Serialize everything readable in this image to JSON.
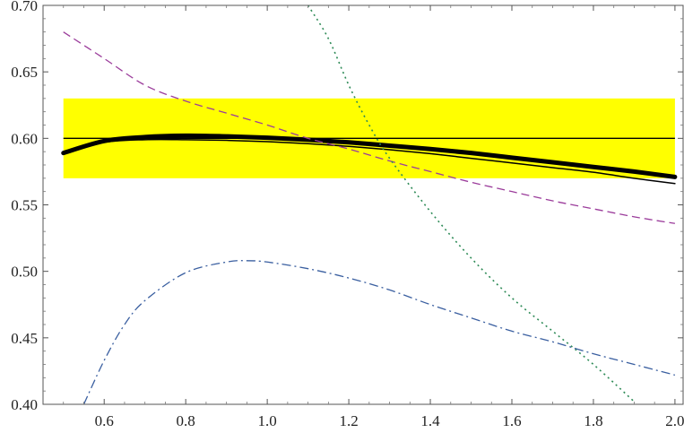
{
  "chart_data": {
    "type": "line",
    "title": "",
    "xlabel": "",
    "ylabel": "",
    "xlim": [
      0.45,
      2.02
    ],
    "ylim": [
      0.4,
      0.7
    ],
    "x_ticks": [
      0.6,
      0.8,
      1.0,
      1.2,
      1.4,
      1.6,
      1.8,
      2.0
    ],
    "y_ticks": [
      0.4,
      0.45,
      0.5,
      0.55,
      0.6,
      0.65,
      0.7
    ],
    "x_tick_labels": [
      "0.6",
      "0.8",
      "1.0",
      "1.2",
      "1.4",
      "1.6",
      "1.8",
      "2.0"
    ],
    "y_tick_labels": [
      "0.40",
      "0.45",
      "0.50",
      "0.55",
      "0.60",
      "0.65",
      "0.70"
    ],
    "grid": false,
    "band": {
      "x": [
        0.5,
        2.0
      ],
      "y": [
        0.57,
        0.63
      ],
      "color": "#ffff00"
    },
    "reference_line": {
      "y": 0.6,
      "x": [
        0.5,
        2.0
      ],
      "color": "#000000"
    },
    "series": [
      {
        "style": "thick-solid",
        "color": "#000000",
        "x": [
          0.5,
          0.6,
          0.7,
          0.8,
          0.9,
          1.0,
          1.1,
          1.2,
          1.3,
          1.4,
          1.5,
          1.6,
          1.7,
          1.8,
          1.9,
          2.0
        ],
        "y": [
          0.589,
          0.598,
          0.601,
          0.602,
          0.6015,
          0.6005,
          0.599,
          0.597,
          0.5945,
          0.592,
          0.589,
          0.5855,
          0.582,
          0.5785,
          0.575,
          0.571
        ]
      },
      {
        "style": "thin-solid",
        "color": "#000000",
        "x": [
          0.5,
          0.6,
          0.7,
          0.8,
          0.9,
          1.0,
          1.1,
          1.2,
          1.3,
          1.4,
          1.5,
          1.6,
          1.7,
          1.8,
          1.9,
          2.0
        ],
        "y": [
          0.589,
          0.597,
          0.599,
          0.599,
          0.5985,
          0.5975,
          0.596,
          0.594,
          0.5915,
          0.5885,
          0.585,
          0.5815,
          0.578,
          0.5745,
          0.57,
          0.566
        ]
      },
      {
        "style": "dashed",
        "color": "#9b3c9b",
        "x": [
          0.5,
          0.6,
          0.7,
          0.8,
          0.9,
          1.0,
          1.1,
          1.2,
          1.3,
          1.4,
          1.5,
          1.6,
          1.7,
          1.8,
          1.9,
          2.0
        ],
        "y": [
          0.68,
          0.66,
          0.64,
          0.628,
          0.619,
          0.61,
          0.6,
          0.592,
          0.583,
          0.575,
          0.567,
          0.56,
          0.553,
          0.547,
          0.541,
          0.536
        ]
      },
      {
        "style": "dotted",
        "color": "#2e8b57",
        "x": [
          1.1,
          1.15,
          1.2,
          1.25,
          1.3,
          1.4,
          1.5,
          1.6,
          1.7,
          1.8,
          1.9
        ],
        "y": [
          0.7,
          0.675,
          0.64,
          0.61,
          0.585,
          0.545,
          0.51,
          0.48,
          0.455,
          0.43,
          0.402
        ]
      },
      {
        "style": "dash-dot",
        "color": "#3a5fa0",
        "x": [
          0.55,
          0.6,
          0.65,
          0.7,
          0.8,
          0.9,
          0.95,
          1.0,
          1.1,
          1.2,
          1.3,
          1.4,
          1.5,
          1.6,
          1.7,
          1.8,
          1.9,
          2.0
        ],
        "y": [
          0.4,
          0.433,
          0.46,
          0.478,
          0.499,
          0.507,
          0.508,
          0.507,
          0.502,
          0.495,
          0.486,
          0.475,
          0.465,
          0.455,
          0.447,
          0.438,
          0.43,
          0.422
        ]
      }
    ]
  }
}
